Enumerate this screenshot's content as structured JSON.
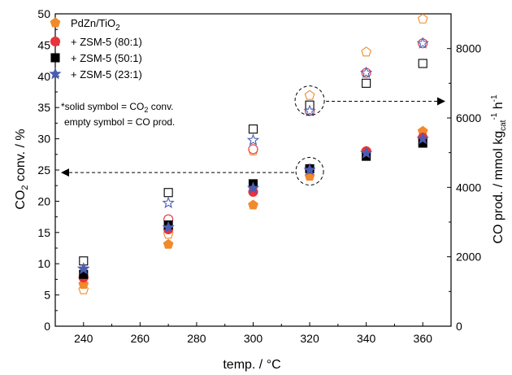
{
  "chart_data": {
    "type": "scatter",
    "x": [
      240,
      270,
      300,
      320,
      340,
      360
    ],
    "xlabel": "temp. / °C",
    "ylabel_left_parts": [
      "CO",
      "2",
      " conv. / %"
    ],
    "ylabel_right_parts": [
      "CO prod. / mmol kg",
      "cat",
      "-1",
      " h",
      "-1"
    ],
    "xlim": [
      230,
      370
    ],
    "ylim_left": [
      0,
      50
    ],
    "ylim_right": [
      0,
      9000
    ],
    "xticks": [
      240,
      260,
      280,
      300,
      320,
      340,
      360
    ],
    "yticks_left": [
      0,
      5,
      10,
      15,
      20,
      25,
      30,
      35,
      40,
      45,
      50
    ],
    "yticks_right": [
      0,
      2000,
      4000,
      6000,
      8000
    ],
    "grid": false,
    "legend_position": "top-left",
    "series": [
      {
        "name_parts": [
          "PdZn/TiO",
          "2"
        ],
        "marker": "pentagon",
        "color": "#f08a2c",
        "conversion": [
          6.7,
          13.1,
          19.4,
          24.0,
          28.0,
          31.2
        ],
        "co_production": [
          1050,
          2650,
          5050,
          6650,
          7900,
          8850
        ]
      },
      {
        "name": "+ ZSM-5 (80:1)",
        "marker": "circle",
        "color": "#e8323c",
        "conversion": [
          7.8,
          15.5,
          21.5,
          25.2,
          28.0,
          30.2
        ],
        "co_production": [
          1400,
          3080,
          5100,
          6200,
          7300,
          8150
        ]
      },
      {
        "name": "+ ZSM-5 (50:1)",
        "marker": "square",
        "color": "#000000",
        "conversion": [
          8.3,
          16.2,
          22.8,
          25.2,
          27.2,
          29.3
        ],
        "co_production": [
          1880,
          3850,
          5680,
          6370,
          7000,
          7570
        ]
      },
      {
        "name": "+ ZSM-5 (23:1)",
        "marker": "star",
        "color": "#4a5db0",
        "conversion": [
          9.2,
          15.8,
          22.1,
          25.0,
          27.7,
          30.0
        ],
        "co_production": [
          1650,
          3550,
          5360,
          6200,
          7300,
          8150
        ]
      }
    ],
    "annotations": {
      "note_line1_parts": [
        "*solid symbol = CO",
        "2",
        " conv."
      ],
      "note_line2": "empty symbol = CO prod."
    }
  }
}
